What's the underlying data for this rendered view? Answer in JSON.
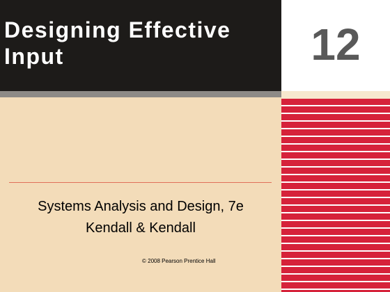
{
  "slide": {
    "title": "Designing Effective Input",
    "chapter_number": "12",
    "subtitle": "Systems Analysis and Design, 7e",
    "authors": "Kendall & Kendall",
    "copyright": "© 2008 Pearson Prentice Hall"
  },
  "colors": {
    "title_background": "#1d1b19",
    "content_background": "#f3dcb9",
    "stripe_red": "#d6223a",
    "number_gray": "#595959"
  }
}
